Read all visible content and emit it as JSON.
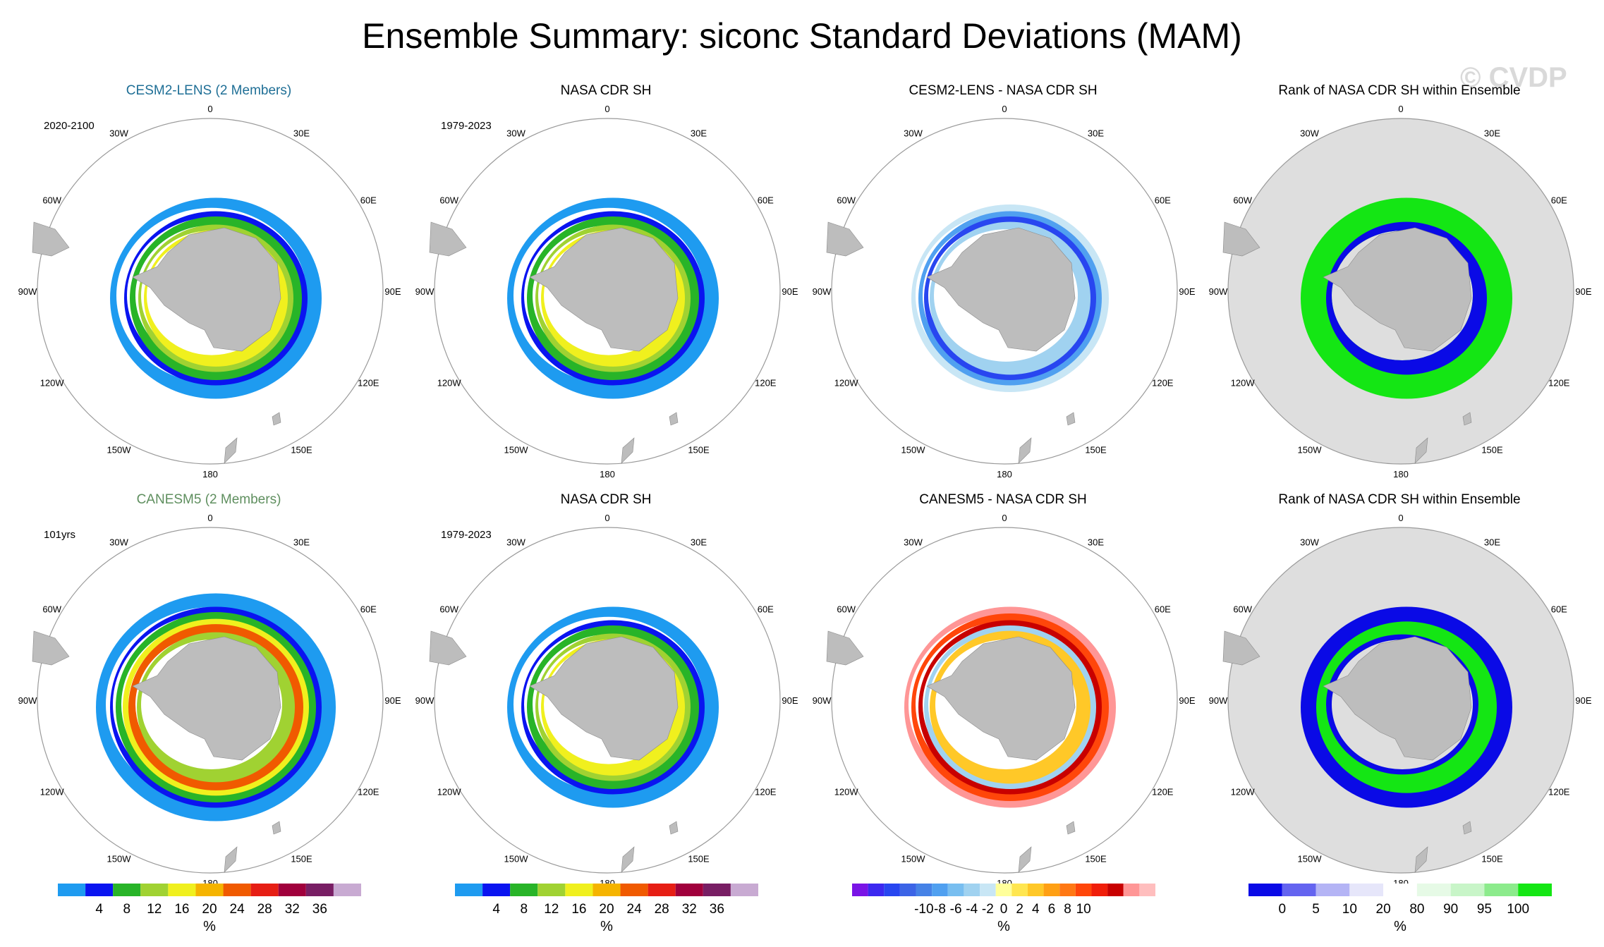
{
  "title": "Ensemble Summary: siconc Standard Deviations (MAM)",
  "watermark": "© CVDP",
  "longitude_labels": [
    "0",
    "30E",
    "60E",
    "90E",
    "120E",
    "150E",
    "180",
    "150W",
    "120W",
    "90W",
    "60W",
    "30W"
  ],
  "chart_data": [
    {
      "type": "heatmap",
      "title": "CESM2-LENS (2 Members)",
      "title_color": "#1f6f96",
      "period": "2020-2100",
      "field": "siconc standard deviation",
      "units": "%",
      "scale": "std"
    },
    {
      "type": "heatmap",
      "title": "NASA CDR SH",
      "title_color": "#000000",
      "period": "1979-2023",
      "field": "siconc standard deviation",
      "units": "%",
      "scale": "std"
    },
    {
      "type": "heatmap",
      "title": "CESM2-LENS - NASA CDR SH",
      "title_color": "#000000",
      "period": "",
      "field": "difference",
      "units": "%",
      "scale": "diff"
    },
    {
      "type": "heatmap",
      "title": "Rank of NASA CDR SH within Ensemble",
      "title_color": "#000000",
      "period": "",
      "field": "rank",
      "units": "%",
      "scale": "rank"
    },
    {
      "type": "heatmap",
      "title": "CANESM5 (2 Members)",
      "title_color": "#5f8f5f",
      "period": "101yrs",
      "field": "siconc standard deviation",
      "units": "%",
      "scale": "std"
    },
    {
      "type": "heatmap",
      "title": "NASA CDR SH",
      "title_color": "#000000",
      "period": "1979-2023",
      "field": "siconc standard deviation",
      "units": "%",
      "scale": "std"
    },
    {
      "type": "heatmap",
      "title": "CANESM5 - NASA CDR SH",
      "title_color": "#000000",
      "period": "",
      "field": "difference",
      "units": "%",
      "scale": "diff"
    },
    {
      "type": "heatmap",
      "title": "Rank of NASA CDR SH within Ensemble",
      "title_color": "#000000",
      "period": "",
      "field": "rank",
      "units": "%",
      "scale": "rank"
    }
  ],
  "colorbars": {
    "std": {
      "colors": [
        "#1e9bf0",
        "#0a14f0",
        "#28b428",
        "#a0d232",
        "#f0f01e",
        "#f5b400",
        "#f05a00",
        "#e61e14",
        "#a0003c",
        "#781e64",
        "#c8aad2"
      ],
      "labels": [
        "4",
        "8",
        "12",
        "16",
        "20",
        "24",
        "28",
        "32",
        "36"
      ],
      "label": "%"
    },
    "diff": {
      "colors": [
        "#7a14e6",
        "#3c28f0",
        "#2846f0",
        "#3c64e6",
        "#4682e6",
        "#50a0f0",
        "#78bef0",
        "#a0d2f0",
        "#c8e6f5",
        "#ffff9b",
        "#ffe650",
        "#ffc828",
        "#ffa014",
        "#ff7814",
        "#ff460a",
        "#f01e0a",
        "#c80000",
        "#ff9696",
        "#ffbebe"
      ],
      "labels": [
        "-10",
        "-8",
        "-6",
        "-4",
        "-2",
        "0",
        "2",
        "4",
        "6",
        "8",
        "10"
      ],
      "label": "%"
    },
    "rank": {
      "colors": [
        "#0a0ae6",
        "#6464f0",
        "#b4b4f5",
        "#e6e6fa",
        "#ffffff",
        "#e6fae6",
        "#c8f5c8",
        "#8ceb8c",
        "#14e614"
      ],
      "labels": [
        "0",
        "5",
        "10",
        "20",
        "80",
        "90",
        "95",
        "100"
      ],
      "label": "%"
    }
  }
}
